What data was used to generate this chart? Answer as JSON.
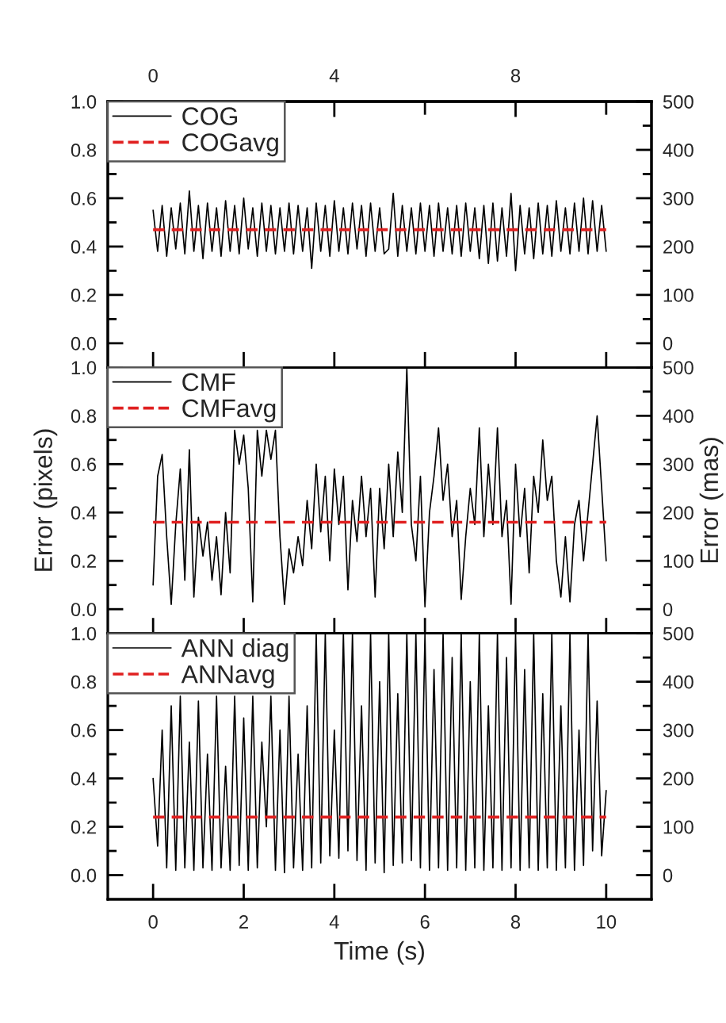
{
  "chart_data": [
    {
      "type": "line",
      "legend": "top left",
      "tick_labels": "y",
      "xlim": [
        -1,
        11
      ],
      "xticks": [
        0,
        2,
        4,
        6,
        8,
        10
      ],
      "x2lim": [
        -1,
        11
      ],
      "x2ticks": [
        0,
        4,
        {
          "value": 6,
          "label": null
        },
        8,
        {
          "value": 10,
          "label": null
        }
      ],
      "ylim": [
        -0.1,
        1.0
      ],
      "yticks": [
        {
          "value": 0,
          "label": "0.0"
        },
        {
          "value": 0.1,
          "label": null
        },
        0.2,
        {
          "value": 0.3,
          "label": null
        },
        0.4,
        {
          "value": 0.5,
          "label": null
        },
        0.6,
        {
          "value": 0.7,
          "label": null
        },
        0.8,
        {
          "value": 0.9,
          "label": null
        },
        {
          "value": 1,
          "label": "1.0"
        }
      ],
      "y2lim": [
        -50,
        500
      ],
      "y2ticks": [
        0,
        {
          "value": 50,
          "label": null
        },
        100,
        {
          "value": 150,
          "label": null
        },
        200,
        {
          "value": 250,
          "label": null
        },
        300,
        {
          "value": 350,
          "label": null
        },
        400,
        {
          "value": 450,
          "label": null
        },
        500
      ],
      "x": [
        0,
        0.1,
        0.2,
        0.3,
        0.4,
        0.5,
        0.6,
        0.7,
        0.8,
        0.9,
        1.0,
        1.1,
        1.2,
        1.3,
        1.4,
        1.5,
        1.6,
        1.7,
        1.8,
        1.9,
        2.0,
        2.1,
        2.2,
        2.3,
        2.4,
        2.5,
        2.6,
        2.7,
        2.8,
        2.9,
        3.0,
        3.1,
        3.2,
        3.3,
        3.4,
        3.5,
        3.6,
        3.7,
        3.8,
        3.9,
        4.0,
        4.1,
        4.2,
        4.3,
        4.4,
        4.5,
        4.6,
        4.7,
        4.8,
        4.9,
        5.0,
        5.1,
        5.2,
        5.3,
        5.4,
        5.5,
        5.6,
        5.7,
        5.8,
        5.9,
        6.0,
        6.1,
        6.2,
        6.3,
        6.4,
        6.5,
        6.6,
        6.7,
        6.8,
        6.9,
        7.0,
        7.1,
        7.2,
        7.3,
        7.4,
        7.5,
        7.6,
        7.7,
        7.8,
        7.9,
        8.0,
        8.1,
        8.2,
        8.3,
        8.4,
        8.5,
        8.6,
        8.7,
        8.8,
        8.9,
        9.0,
        9.1,
        9.2,
        9.3,
        9.4,
        9.5,
        9.6,
        9.7,
        9.8,
        9.9,
        10.0
      ],
      "series": [
        {
          "name": "COG",
          "color": "#000000",
          "values": [
            0.55,
            0.38,
            0.57,
            0.36,
            0.56,
            0.39,
            0.58,
            0.37,
            0.63,
            0.38,
            0.57,
            0.35,
            0.58,
            0.38,
            0.56,
            0.36,
            0.59,
            0.38,
            0.57,
            0.37,
            0.6,
            0.39,
            0.56,
            0.36,
            0.58,
            0.38,
            0.57,
            0.37,
            0.56,
            0.38,
            0.58,
            0.37,
            0.57,
            0.38,
            0.56,
            0.31,
            0.58,
            0.38,
            0.57,
            0.36,
            0.59,
            0.38,
            0.56,
            0.37,
            0.58,
            0.39,
            0.57,
            0.36,
            0.58,
            0.38,
            0.56,
            0.37,
            0.39,
            0.62,
            0.36,
            0.57,
            0.38,
            0.56,
            0.37,
            0.58,
            0.38,
            0.57,
            0.36,
            0.58,
            0.38,
            0.56,
            0.37,
            0.57,
            0.36,
            0.58,
            0.38,
            0.56,
            0.35,
            0.57,
            0.33,
            0.58,
            0.34,
            0.56,
            0.36,
            0.62,
            0.3,
            0.57,
            0.37,
            0.56,
            0.35,
            0.58,
            0.37,
            0.57,
            0.36,
            0.59,
            0.38,
            0.56,
            0.37,
            0.58,
            0.38,
            0.6,
            0.37,
            0.59,
            0.38,
            0.57,
            0.38
          ]
        }
      ],
      "ref_lines": [
        {
          "axis": "y",
          "value": 0.47,
          "label": "COGavg",
          "color": "#e02020",
          "line_style": "dashed"
        }
      ]
    },
    {
      "type": "line",
      "legend": "top left",
      "tick_labels": "y",
      "ylabel": "Error (pixels)",
      "y2label": "Error (mas)",
      "xlim": [
        -1,
        11
      ],
      "xticks": [
        0,
        2,
        4,
        6,
        8,
        10
      ],
      "ylim": [
        -0.1,
        1.0
      ],
      "yticks": [
        {
          "value": 0,
          "label": "0.0"
        },
        {
          "value": 0.1,
          "label": null
        },
        0.2,
        {
          "value": 0.3,
          "label": null
        },
        0.4,
        {
          "value": 0.5,
          "label": null
        },
        0.6,
        {
          "value": 0.7,
          "label": null
        },
        0.8,
        {
          "value": 0.9,
          "label": null
        },
        {
          "value": 1,
          "label": "1.0"
        }
      ],
      "y2lim": [
        -50,
        500
      ],
      "y2ticks": [
        0,
        {
          "value": 50,
          "label": null
        },
        100,
        {
          "value": 150,
          "label": null
        },
        200,
        {
          "value": 250,
          "label": null
        },
        300,
        {
          "value": 350,
          "label": null
        },
        400,
        {
          "value": 450,
          "label": null
        },
        500
      ],
      "x": [
        0,
        0.1,
        0.2,
        0.3,
        0.4,
        0.5,
        0.6,
        0.7,
        0.8,
        0.9,
        1.0,
        1.1,
        1.2,
        1.3,
        1.4,
        1.5,
        1.6,
        1.7,
        1.8,
        1.9,
        2.0,
        2.1,
        2.2,
        2.3,
        2.4,
        2.5,
        2.6,
        2.7,
        2.8,
        2.9,
        3.0,
        3.1,
        3.2,
        3.3,
        3.4,
        3.5,
        3.6,
        3.7,
        3.8,
        3.9,
        4.0,
        4.1,
        4.2,
        4.3,
        4.4,
        4.5,
        4.6,
        4.7,
        4.8,
        4.9,
        5.0,
        5.1,
        5.2,
        5.3,
        5.4,
        5.5,
        5.6,
        5.7,
        5.8,
        5.9,
        6.0,
        6.1,
        6.2,
        6.3,
        6.4,
        6.5,
        6.6,
        6.7,
        6.8,
        6.9,
        7.0,
        7.1,
        7.2,
        7.3,
        7.4,
        7.5,
        7.6,
        7.7,
        7.8,
        7.9,
        8.0,
        8.1,
        8.2,
        8.3,
        8.4,
        8.5,
        8.6,
        8.7,
        8.8,
        8.9,
        9.0,
        9.1,
        9.2,
        9.3,
        9.4,
        9.5,
        9.6,
        9.7,
        9.8,
        9.9,
        10.0
      ],
      "series": [
        {
          "name": "CMF",
          "color": "#000000",
          "values": [
            0.1,
            0.55,
            0.64,
            0.3,
            0.02,
            0.35,
            0.58,
            0.12,
            0.66,
            0.05,
            0.38,
            0.22,
            0.36,
            0.12,
            0.3,
            0.06,
            0.4,
            0.15,
            0.74,
            0.6,
            0.72,
            0.5,
            0.03,
            0.74,
            0.55,
            0.74,
            0.62,
            0.74,
            0.3,
            0.02,
            0.25,
            0.15,
            0.3,
            0.18,
            0.45,
            0.25,
            0.6,
            0.32,
            0.55,
            0.2,
            0.58,
            0.35,
            0.55,
            0.08,
            0.45,
            0.28,
            0.55,
            0.3,
            0.5,
            0.05,
            0.5,
            0.25,
            0.6,
            0.3,
            0.65,
            0.4,
            1.0,
            0.35,
            0.2,
            0.55,
            0.01,
            0.4,
            0.55,
            0.75,
            0.45,
            0.6,
            0.3,
            0.45,
            0.04,
            0.3,
            0.5,
            0.35,
            0.75,
            0.3,
            0.6,
            0.35,
            0.75,
            0.3,
            0.45,
            0.02,
            0.6,
            0.3,
            0.5,
            0.15,
            0.55,
            0.4,
            0.7,
            0.45,
            0.55,
            0.2,
            0.05,
            0.3,
            0.03,
            0.35,
            0.45,
            0.2,
            0.4,
            0.6,
            0.8,
            0.5,
            0.2
          ]
        }
      ],
      "ref_lines": [
        {
          "axis": "y",
          "value": 0.36,
          "label": "CMFavg",
          "color": "#e02020",
          "line_style": "dashed"
        }
      ]
    },
    {
      "type": "line",
      "legend": "top left",
      "xlabel": "Time (s)",
      "xlim": [
        -1,
        11
      ],
      "xticks": [
        0,
        2,
        4,
        6,
        8,
        10
      ],
      "ylim": [
        -0.1,
        1.0
      ],
      "yticks": [
        {
          "value": 0,
          "label": "0.0"
        },
        {
          "value": 0.1,
          "label": null
        },
        0.2,
        {
          "value": 0.3,
          "label": null
        },
        0.4,
        {
          "value": 0.5,
          "label": null
        },
        0.6,
        {
          "value": 0.7,
          "label": null
        },
        0.8,
        {
          "value": 0.9,
          "label": null
        },
        {
          "value": 1,
          "label": "1.0"
        }
      ],
      "y2lim": [
        -50,
        500
      ],
      "y2ticks": [
        0,
        {
          "value": 50,
          "label": null
        },
        100,
        {
          "value": 150,
          "label": null
        },
        200,
        {
          "value": 250,
          "label": null
        },
        300,
        {
          "value": 350,
          "label": null
        },
        400,
        {
          "value": 450,
          "label": null
        },
        500
      ],
      "x": [
        0,
        0.1,
        0.2,
        0.3,
        0.4,
        0.5,
        0.6,
        0.7,
        0.8,
        0.9,
        1.0,
        1.1,
        1.2,
        1.3,
        1.4,
        1.5,
        1.6,
        1.7,
        1.8,
        1.9,
        2.0,
        2.1,
        2.2,
        2.3,
        2.4,
        2.5,
        2.6,
        2.7,
        2.8,
        2.9,
        3.0,
        3.1,
        3.2,
        3.3,
        3.4,
        3.5,
        3.6,
        3.7,
        3.8,
        3.9,
        4.0,
        4.1,
        4.2,
        4.3,
        4.4,
        4.5,
        4.6,
        4.7,
        4.8,
        4.9,
        5.0,
        5.1,
        5.2,
        5.3,
        5.4,
        5.5,
        5.6,
        5.7,
        5.8,
        5.9,
        6.0,
        6.1,
        6.2,
        6.3,
        6.4,
        6.5,
        6.6,
        6.7,
        6.8,
        6.9,
        7.0,
        7.1,
        7.2,
        7.3,
        7.4,
        7.5,
        7.6,
        7.7,
        7.8,
        7.9,
        8.0,
        8.1,
        8.2,
        8.3,
        8.4,
        8.5,
        8.6,
        8.7,
        8.8,
        8.9,
        9.0,
        9.1,
        9.2,
        9.3,
        9.4,
        9.5,
        9.6,
        9.7,
        9.8,
        9.9,
        10.0
      ],
      "series": [
        {
          "name": "ANN diag",
          "color": "#000000",
          "values": [
            0.4,
            0.12,
            0.6,
            0.03,
            0.7,
            0.02,
            0.74,
            0.03,
            0.55,
            0.02,
            0.72,
            0.03,
            0.5,
            0.02,
            0.74,
            0.03,
            0.45,
            0.02,
            0.74,
            0.04,
            0.65,
            0.02,
            0.74,
            0.03,
            0.55,
            0.2,
            0.74,
            0.02,
            0.6,
            0.01,
            0.74,
            0.03,
            0.5,
            0.02,
            0.7,
            0.03,
            1.0,
            0.05,
            1.0,
            0.08,
            0.6,
            0.07,
            1.0,
            0.1,
            1.0,
            0.06,
            0.7,
            0.02,
            1.0,
            0.05,
            0.8,
            0.01,
            1.0,
            0.04,
            0.75,
            0.05,
            1.0,
            0.06,
            1.0,
            0.03,
            1.0,
            0.02,
            0.85,
            0.03,
            1.0,
            0.02,
            0.9,
            0.03,
            1.0,
            0.02,
            0.8,
            0.03,
            1.0,
            0.02,
            0.7,
            0.03,
            1.0,
            0.02,
            0.9,
            0.03,
            1.0,
            0.02,
            0.85,
            0.03,
            1.0,
            0.02,
            0.75,
            0.03,
            1.0,
            0.02,
            0.7,
            0.03,
            1.0,
            0.02,
            0.6,
            0.04,
            1.0,
            0.1,
            0.72,
            0.08,
            0.35
          ]
        }
      ],
      "ref_lines": [
        {
          "axis": "y",
          "value": 0.24,
          "label": "ANNavg",
          "color": "#e02020",
          "line_style": "dashed"
        }
      ]
    }
  ]
}
